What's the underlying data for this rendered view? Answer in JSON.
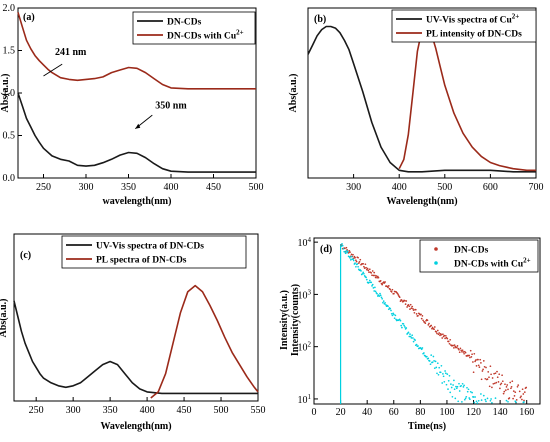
{
  "colors": {
    "black": "#1a1a1a",
    "red": "#9b2a1a",
    "cyan": "#00d0e0",
    "cd_scatter": "#c0392b"
  },
  "chart_data": [
    {
      "panel": "(a)",
      "type": "line",
      "xlabel": "wavelength(nm)",
      "ylabel": "Abs(a.u.)",
      "xlim": [
        220,
        500
      ],
      "ylim": [
        0.0,
        2.0
      ],
      "xticks": [
        250,
        300,
        350,
        400,
        450,
        500
      ],
      "yticks": [
        "0.0",
        "0.5",
        "1.0",
        "1.5",
        "2.0"
      ],
      "legend": "top-right",
      "series": [
        {
          "name": "DN-CDs",
          "color": "black",
          "x": [
            220,
            225,
            230,
            235,
            240,
            245,
            250,
            260,
            270,
            280,
            290,
            300,
            310,
            320,
            330,
            340,
            350,
            360,
            370,
            380,
            390,
            400,
            420,
            450,
            500
          ],
          "y": [
            1.0,
            0.85,
            0.7,
            0.6,
            0.5,
            0.42,
            0.35,
            0.26,
            0.22,
            0.2,
            0.15,
            0.14,
            0.15,
            0.18,
            0.22,
            0.27,
            0.3,
            0.29,
            0.24,
            0.17,
            0.11,
            0.08,
            0.07,
            0.07,
            0.07
          ]
        },
        {
          "name": "DN-CDs with Cu2+",
          "legend_label": "DN-CDs with Cu",
          "legend_sup": "2+",
          "color": "red",
          "x": [
            220,
            225,
            230,
            235,
            240,
            245,
            250,
            255,
            260,
            270,
            280,
            290,
            300,
            310,
            320,
            330,
            340,
            350,
            360,
            370,
            380,
            390,
            400,
            420,
            450,
            500
          ],
          "y": [
            1.95,
            1.78,
            1.62,
            1.52,
            1.44,
            1.38,
            1.33,
            1.28,
            1.24,
            1.18,
            1.16,
            1.15,
            1.16,
            1.17,
            1.19,
            1.24,
            1.27,
            1.3,
            1.29,
            1.24,
            1.17,
            1.1,
            1.06,
            1.05,
            1.05,
            1.05
          ]
        }
      ],
      "annotations": [
        {
          "text": "241 nm",
          "x": 282,
          "y": 1.45
        },
        {
          "text": "350 nm",
          "x": 400,
          "y": 0.82
        }
      ]
    },
    {
      "panel": "(b)",
      "type": "line",
      "xlabel": "Wavelength(nm)",
      "ylabel": "Abs(a.u.)",
      "xlim": [
        200,
        700
      ],
      "ylim": [
        0,
        1.1
      ],
      "xticks": [
        300,
        400,
        500,
        600,
        700
      ],
      "legend": "top-right",
      "series": [
        {
          "name": "UV-Vis spectra of Cu2+",
          "legend_label": "UV-Vis spectra of Cu",
          "legend_sup": "2+",
          "color": "black",
          "x": [
            200,
            210,
            220,
            230,
            240,
            250,
            260,
            270,
            280,
            290,
            300,
            320,
            340,
            360,
            380,
            400,
            420,
            450,
            500,
            550,
            600,
            650,
            700
          ],
          "y": [
            0.8,
            0.86,
            0.92,
            0.96,
            0.98,
            0.98,
            0.97,
            0.94,
            0.89,
            0.83,
            0.74,
            0.56,
            0.36,
            0.2,
            0.1,
            0.05,
            0.04,
            0.04,
            0.05,
            0.05,
            0.05,
            0.04,
            0.04
          ]
        },
        {
          "name": "PL intensity of DN-CDs",
          "color": "red",
          "x": [
            400,
            410,
            420,
            430,
            440,
            450,
            460,
            470,
            480,
            490,
            500,
            520,
            540,
            560,
            580,
            600,
            620,
            650,
            680,
            700
          ],
          "y": [
            0.06,
            0.12,
            0.28,
            0.55,
            0.82,
            0.96,
            0.98,
            0.94,
            0.84,
            0.72,
            0.6,
            0.42,
            0.29,
            0.2,
            0.14,
            0.1,
            0.08,
            0.06,
            0.05,
            0.05
          ]
        }
      ]
    },
    {
      "panel": "(c)",
      "type": "line",
      "xlabel": "Wavelength(nm)",
      "ylabel": "Abs(a.u.)",
      "xlim": [
        220,
        550
      ],
      "ylim": [
        0,
        1.1
      ],
      "xticks": [
        250,
        300,
        350,
        400,
        450,
        500,
        550
      ],
      "legend": "top-left",
      "series": [
        {
          "name": "UV-Vis spectra of DN-CDs",
          "color": "black",
          "x": [
            220,
            225,
            230,
            235,
            240,
            245,
            250,
            255,
            260,
            270,
            280,
            290,
            300,
            310,
            320,
            330,
            340,
            350,
            360,
            370,
            380,
            390,
            400,
            420,
            450,
            500,
            550
          ],
          "y": [
            0.66,
            0.56,
            0.46,
            0.38,
            0.32,
            0.26,
            0.22,
            0.18,
            0.15,
            0.12,
            0.1,
            0.09,
            0.1,
            0.12,
            0.16,
            0.2,
            0.24,
            0.26,
            0.24,
            0.18,
            0.12,
            0.08,
            0.06,
            0.05,
            0.05,
            0.05,
            0.05
          ]
        },
        {
          "name": "PL spectra of DN-CDs",
          "color": "red",
          "x": [
            405,
            415,
            425,
            435,
            445,
            455,
            465,
            475,
            485,
            495,
            505,
            515,
            525,
            535,
            545,
            550
          ],
          "y": [
            0.02,
            0.06,
            0.18,
            0.38,
            0.58,
            0.72,
            0.76,
            0.72,
            0.63,
            0.53,
            0.42,
            0.32,
            0.24,
            0.16,
            0.09,
            0.06
          ]
        }
      ]
    },
    {
      "panel": "(d)",
      "type": "scatter",
      "xlabel": "Time(ns)",
      "ylabel": "Intensity(a.u.)",
      "ylabel2": "Intensity(counts)",
      "xlim": [
        0,
        170
      ],
      "ylim": [
        8,
        12000
      ],
      "yscale": "log",
      "xticks": [
        0,
        20,
        40,
        60,
        80,
        100,
        120,
        140,
        160
      ],
      "yticks": [
        {
          "base": "10",
          "exp": "1"
        },
        {
          "base": "10",
          "exp": "2"
        },
        {
          "base": "10",
          "exp": "3"
        },
        {
          "base": "10",
          "exp": "4"
        }
      ],
      "legend": "top-right",
      "series": [
        {
          "name": "DN-CDs",
          "color": "cd_scatter",
          "decay_tau_ns": 19,
          "peak": 9000,
          "t0": 20
        },
        {
          "name": "DN-CDs with Cu2+",
          "legend_label": "DN-CDs with Cu",
          "legend_sup": "2+",
          "color": "cyan",
          "decay_tau_ns": 13,
          "peak": 9000,
          "t0": 20
        }
      ]
    }
  ]
}
